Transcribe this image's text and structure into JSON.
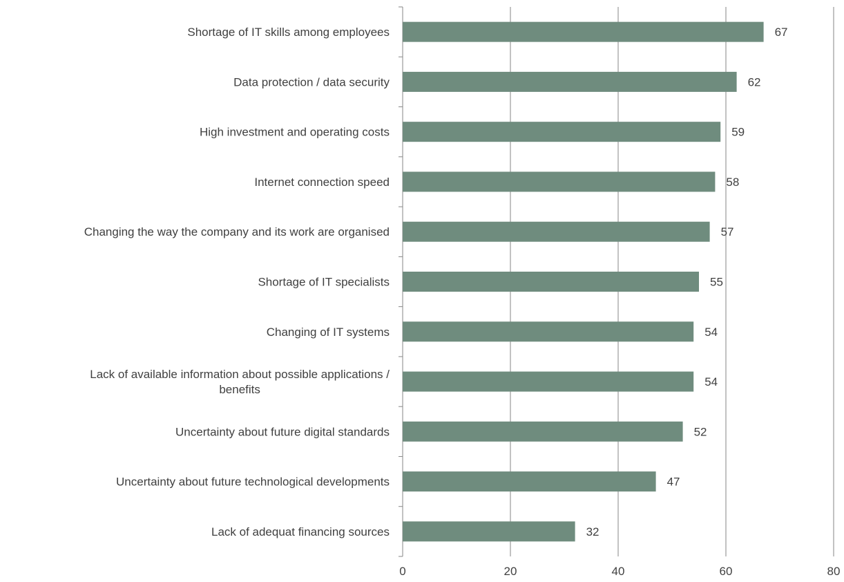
{
  "chart_data": {
    "type": "bar",
    "orientation": "horizontal",
    "categories": [
      "Shortage of IT skills among employees",
      "Data protection / data security",
      "High investment and operating costs",
      "Internet connection speed",
      "Changing the way the company and its work are organised",
      "Shortage of IT specialists",
      "Changing of IT systems",
      "Lack of available information about possible applications / benefits",
      "Uncertainty about future digital standards",
      "Uncertainty about future  technological developments",
      "Lack of adequat financing sources"
    ],
    "category_lines": [
      [
        "Shortage of IT skills among employees"
      ],
      [
        "Data protection / data security"
      ],
      [
        "High investment and operating costs"
      ],
      [
        "Internet connection speed"
      ],
      [
        "Changing the way the company and its work are organised"
      ],
      [
        "Shortage of IT specialists"
      ],
      [
        "Changing of IT systems"
      ],
      [
        "Lack of available information about possible applications /",
        "benefits"
      ],
      [
        "Uncertainty about future digital standards"
      ],
      [
        "Uncertainty about future  technological developments"
      ],
      [
        "Lack of adequat financing sources"
      ]
    ],
    "values": [
      67,
      62,
      59,
      58,
      57,
      55,
      54,
      54,
      52,
      47,
      32
    ],
    "xlim": [
      0,
      80
    ],
    "xticks": [
      0,
      20,
      40,
      60,
      80
    ],
    "grid": "vertical",
    "colors": {
      "bar": "#6f8c7e",
      "grid": "#868686",
      "text": "#404040"
    }
  }
}
